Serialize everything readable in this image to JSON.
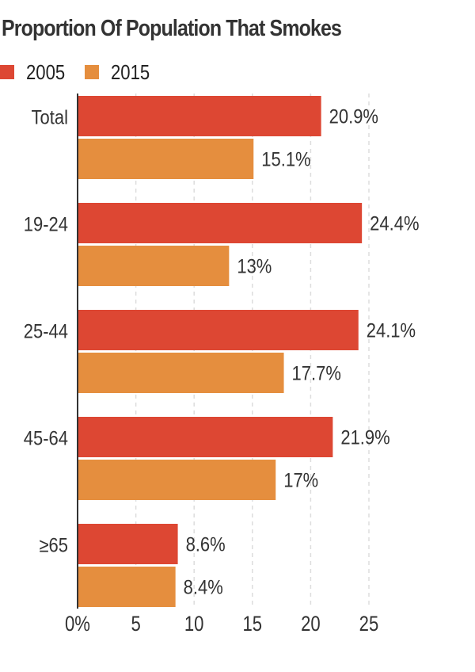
{
  "chart_data": {
    "type": "bar",
    "orientation": "horizontal",
    "title": "Proportion Of Population That Smokes",
    "categories": [
      "Total",
      "19-24",
      "25-44",
      "45-64",
      "≥65"
    ],
    "series": [
      {
        "name": "2005",
        "color": "#dd4733",
        "values": [
          20.9,
          24.4,
          24.1,
          21.9,
          8.6
        ],
        "labels": [
          "20.9%",
          "24.4%",
          "24.1%",
          "21.9%",
          "8.6%"
        ]
      },
      {
        "name": "2015",
        "color": "#e58e3e",
        "values": [
          15.1,
          13,
          17.7,
          17,
          8.4
        ],
        "labels": [
          "15.1%",
          "13%",
          "17.7%",
          "17%",
          "8.4%"
        ]
      }
    ],
    "xlim": [
      0,
      25
    ],
    "xticks": [
      0,
      5,
      10,
      15,
      20,
      25
    ],
    "xtick_labels": [
      "0%",
      "5",
      "10",
      "15",
      "20",
      "25"
    ],
    "grid": "vertical-dashed",
    "legend_position": "top-left",
    "xlabel": "",
    "ylabel": ""
  }
}
